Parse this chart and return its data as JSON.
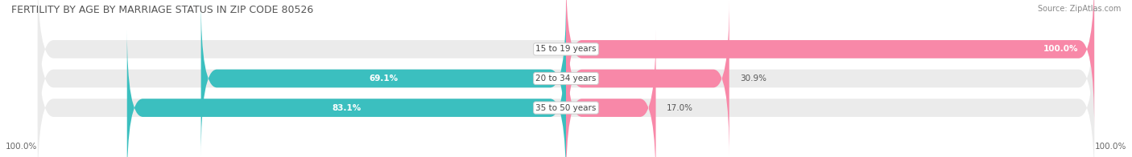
{
  "title": "FERTILITY BY AGE BY MARRIAGE STATUS IN ZIP CODE 80526",
  "source": "Source: ZipAtlas.com",
  "categories": [
    "15 to 19 years",
    "20 to 34 years",
    "35 to 50 years"
  ],
  "married_pct": [
    0.0,
    69.1,
    83.1
  ],
  "unmarried_pct": [
    100.0,
    30.9,
    17.0
  ],
  "married_color": "#3bbfbf",
  "unmarried_color": "#f888a8",
  "bar_bg_color": "#ebebeb",
  "title_fontsize": 9,
  "source_fontsize": 7,
  "bar_label_fontsize": 7.5,
  "category_fontsize": 7.5,
  "legend_fontsize": 8,
  "footer_fontsize": 7.5,
  "bar_height": 0.62,
  "x_left_label": "100.0%",
  "x_right_label": "100.0%"
}
